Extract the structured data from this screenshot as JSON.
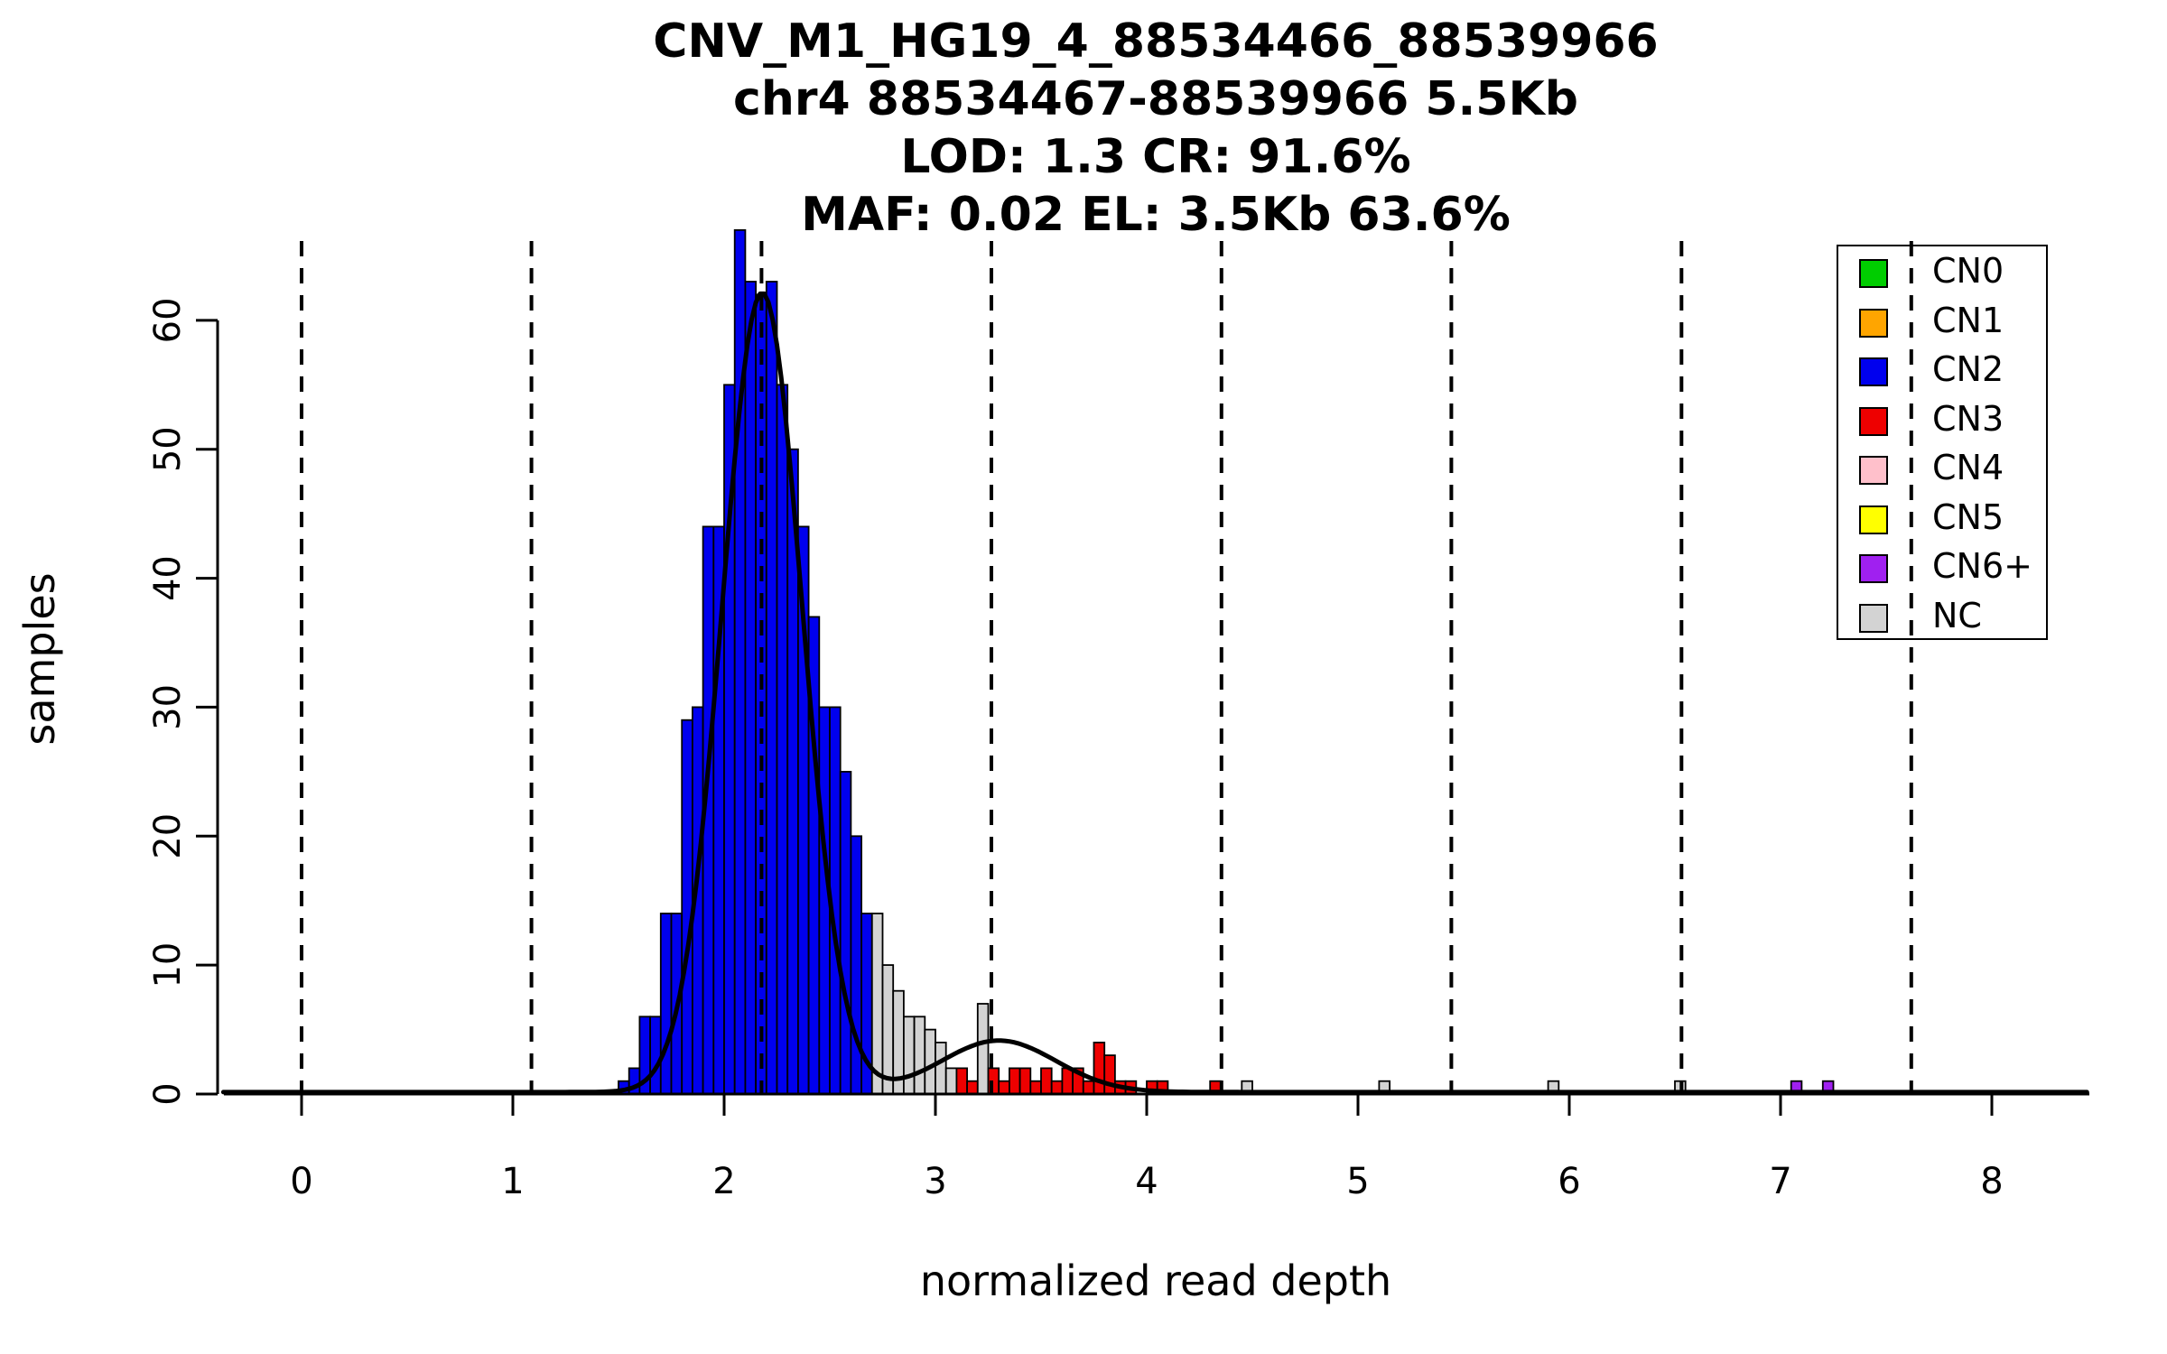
{
  "title": {
    "line1": "CNV_M1_HG19_4_88534466_88539966",
    "line2": "chr4 88534467-88539966 5.5Kb",
    "line3": "LOD: 1.3 CR: 91.6%",
    "line4": "MAF: 0.02 EL: 3.5Kb 63.6%"
  },
  "axes": {
    "x_label": "normalized read depth",
    "y_label": "samples",
    "x_ticks": [
      0,
      1,
      2,
      3,
      4,
      5,
      6,
      7,
      8
    ],
    "y_ticks": [
      0,
      10,
      20,
      30,
      40,
      50,
      60
    ]
  },
  "legend": {
    "items": [
      {
        "label": "CN0",
        "color": "#00CD00"
      },
      {
        "label": "CN1",
        "color": "#FFA500"
      },
      {
        "label": "CN2",
        "color": "#0000EE"
      },
      {
        "label": "CN3",
        "color": "#EE0000"
      },
      {
        "label": "CN4",
        "color": "#FFC0CB"
      },
      {
        "label": "CN5",
        "color": "#FFFF00"
      },
      {
        "label": "CN6+",
        "color": "#A020F0"
      },
      {
        "label": "NC",
        "color": "#D3D3D3"
      }
    ]
  },
  "chart_data": {
    "type": "bar",
    "subtype": "histogram-with-density",
    "title_lines": [
      "CNV_M1_HG19_4_88534466_88539966",
      "chr4 88534467-88539966 5.5Kb",
      "LOD: 1.3 CR: 91.6%",
      "MAF: 0.02 EL: 3.5Kb 63.6%"
    ],
    "xlabel": "normalized read depth",
    "ylabel": "samples",
    "xlim": [
      -0.37,
      8.46
    ],
    "ylim": [
      0,
      68
    ],
    "bin_width": 0.05,
    "colors": {
      "CN0": "#00CD00",
      "CN1": "#FFA500",
      "CN2": "#0000EE",
      "CN3": "#EE0000",
      "CN4": "#FFC0CB",
      "CN5": "#FFFF00",
      "CN6+": "#A020F0",
      "NC": "#D3D3D3"
    },
    "vlines": [
      0,
      1.088,
      2.177,
      3.265,
      4.354,
      5.442,
      6.531,
      7.619
    ],
    "bars_format": [
      "bin_start",
      "count",
      "cn_class"
    ],
    "bars": [
      [
        1.5,
        1,
        "CN2"
      ],
      [
        1.55,
        2,
        "CN2"
      ],
      [
        1.6,
        6,
        "CN2"
      ],
      [
        1.65,
        6,
        "CN2"
      ],
      [
        1.7,
        14,
        "CN2"
      ],
      [
        1.75,
        14,
        "CN2"
      ],
      [
        1.8,
        29,
        "CN2"
      ],
      [
        1.85,
        30,
        "CN2"
      ],
      [
        1.9,
        44,
        "CN2"
      ],
      [
        1.95,
        44,
        "CN2"
      ],
      [
        2.0,
        55,
        "CN2"
      ],
      [
        2.05,
        67,
        "CN2"
      ],
      [
        2.1,
        63,
        "CN2"
      ],
      [
        2.15,
        62,
        "CN2"
      ],
      [
        2.2,
        63,
        "CN2"
      ],
      [
        2.25,
        55,
        "CN2"
      ],
      [
        2.3,
        50,
        "CN2"
      ],
      [
        2.35,
        44,
        "CN2"
      ],
      [
        2.4,
        37,
        "CN2"
      ],
      [
        2.45,
        30,
        "CN2"
      ],
      [
        2.5,
        30,
        "CN2"
      ],
      [
        2.55,
        25,
        "CN2"
      ],
      [
        2.6,
        20,
        "CN2"
      ],
      [
        2.65,
        14,
        "CN2"
      ],
      [
        2.7,
        14,
        "NC"
      ],
      [
        2.75,
        10,
        "NC"
      ],
      [
        2.8,
        8,
        "NC"
      ],
      [
        2.85,
        6,
        "NC"
      ],
      [
        2.9,
        6,
        "NC"
      ],
      [
        2.95,
        5,
        "NC"
      ],
      [
        3.0,
        4,
        "NC"
      ],
      [
        3.05,
        2,
        "NC"
      ],
      [
        3.1,
        2,
        "CN3"
      ],
      [
        3.15,
        1,
        "CN3"
      ],
      [
        3.2,
        7,
        "NC"
      ],
      [
        3.25,
        2,
        "CN3"
      ],
      [
        3.3,
        1,
        "CN3"
      ],
      [
        3.35,
        2,
        "CN3"
      ],
      [
        3.4,
        2,
        "CN3"
      ],
      [
        3.45,
        1,
        "CN3"
      ],
      [
        3.5,
        2,
        "CN3"
      ],
      [
        3.55,
        1,
        "CN3"
      ],
      [
        3.6,
        2,
        "CN3"
      ],
      [
        3.65,
        2,
        "CN3"
      ],
      [
        3.7,
        1,
        "CN3"
      ],
      [
        3.75,
        4,
        "CN3"
      ],
      [
        3.8,
        3,
        "CN3"
      ],
      [
        3.85,
        1,
        "CN3"
      ],
      [
        3.9,
        1,
        "CN3"
      ],
      [
        4.0,
        1,
        "CN3"
      ],
      [
        4.05,
        1,
        "CN3"
      ],
      [
        4.3,
        1,
        "CN3"
      ],
      [
        4.45,
        1,
        "NC"
      ],
      [
        5.1,
        1,
        "NC"
      ],
      [
        5.9,
        1,
        "NC"
      ],
      [
        6.5,
        1,
        "NC"
      ],
      [
        7.05,
        1,
        "CN6+"
      ],
      [
        7.2,
        1,
        "CN6+"
      ]
    ],
    "curve": {
      "baseline": 0.15,
      "gaussians": [
        {
          "amp": 62,
          "mean": 2.18,
          "sd": 0.19
        },
        {
          "amp": 4,
          "mean": 3.3,
          "sd": 0.27
        }
      ]
    }
  }
}
